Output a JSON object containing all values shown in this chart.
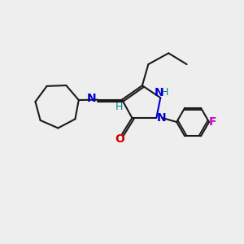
{
  "bg_color": "#eeeeee",
  "bond_color": "#1a1a1a",
  "N_color": "#0000cc",
  "O_color": "#cc0000",
  "F_color": "#cc00cc",
  "H_color": "#008888",
  "line_width": 1.5,
  "figsize": [
    3.0,
    3.0
  ],
  "dpi": 100,
  "xlim": [
    0,
    12
  ],
  "ylim": [
    0,
    12
  ]
}
